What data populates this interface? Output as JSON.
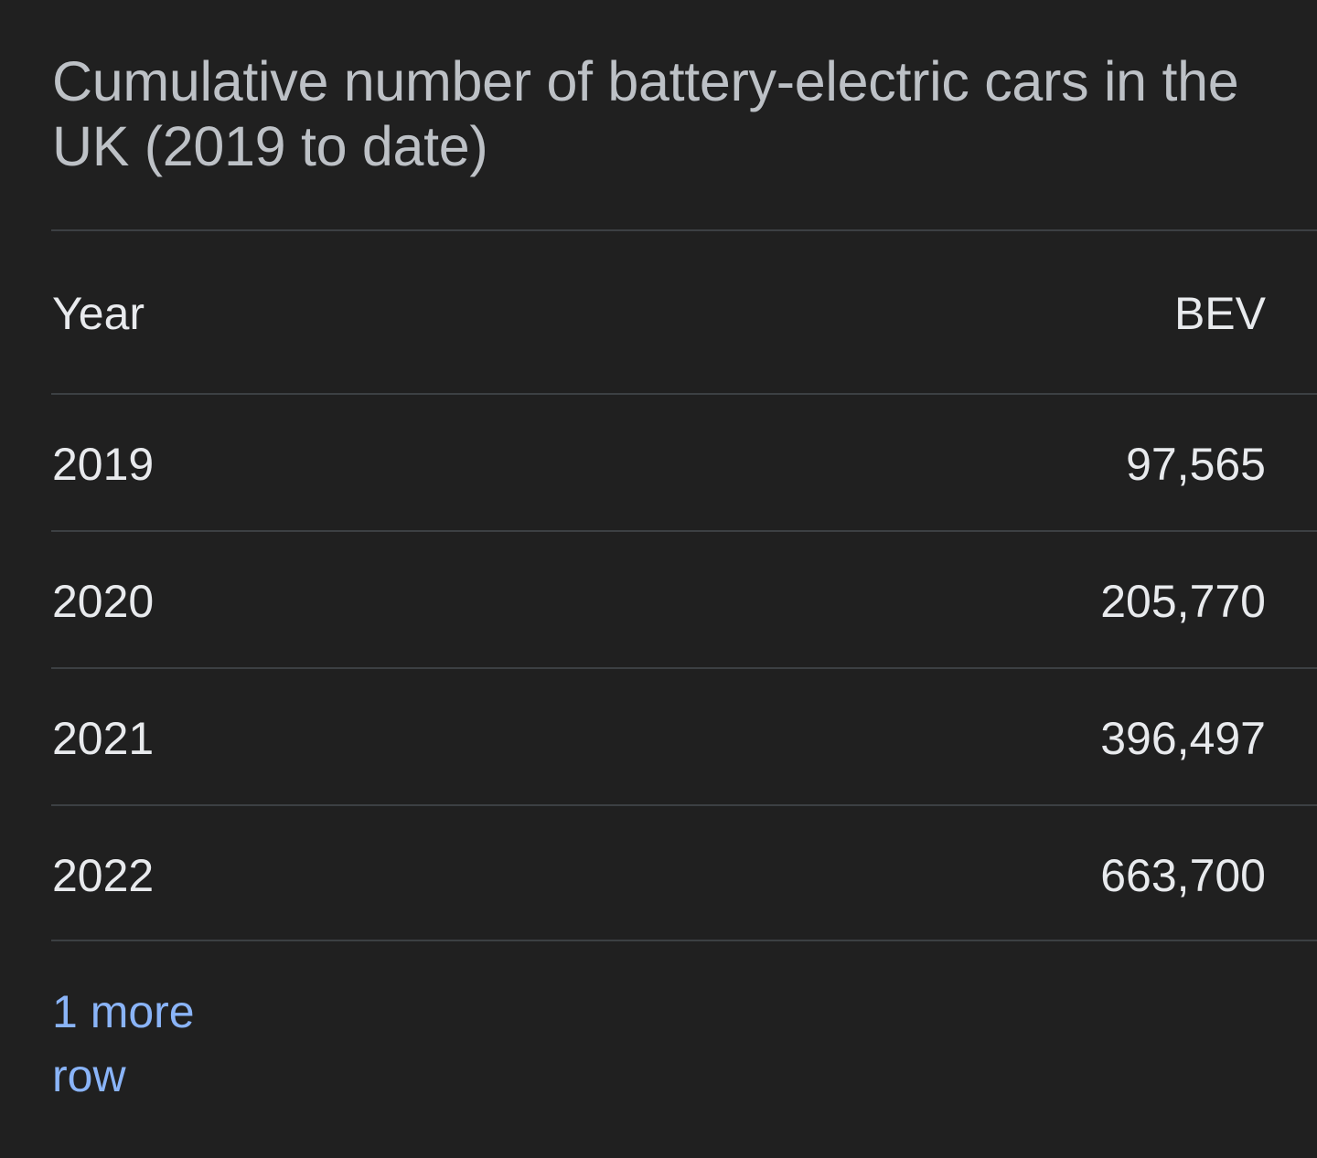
{
  "title": "Cumulative number of battery-electric cars in the UK (2019 to date)",
  "table": {
    "headers": {
      "year": "Year",
      "bev": "BEV"
    },
    "rows": [
      {
        "year": "2019",
        "bev": "97,565"
      },
      {
        "year": "2020",
        "bev": "205,770"
      },
      {
        "year": "2021",
        "bev": "396,497"
      },
      {
        "year": "2022",
        "bev": "663,700"
      }
    ]
  },
  "more_rows_link": "1 more row",
  "colors": {
    "background": "#202020",
    "title_text": "#bdc1c6",
    "cell_text": "#e8eaed",
    "divider": "#3c4043",
    "link": "#8ab4f8"
  }
}
